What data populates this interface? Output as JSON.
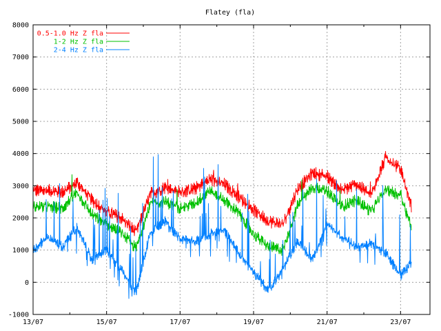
{
  "chart_data": {
    "type": "line",
    "title": "Flatey (fla)",
    "xlabel": "",
    "ylabel": "",
    "x_ticks": [
      "13/07",
      "15/07",
      "17/07",
      "19/07",
      "21/07",
      "23/07"
    ],
    "x_range": [
      0,
      10.8
    ],
    "ylim": [
      -1000,
      8000
    ],
    "y_ticks": [
      -1000,
      0,
      1000,
      2000,
      3000,
      4000,
      5000,
      6000,
      7000,
      8000
    ],
    "grid": true,
    "legend_position": "top-left",
    "colors": {
      "s0": "#ff0000",
      "s1": "#00c000",
      "s2": "#0080ff",
      "frame": "#000000",
      "grid": "#a0a0a0"
    },
    "series": [
      {
        "name": "0.5-1.0 Hz Z fla",
        "color": "#ff0000",
        "x": [
          0,
          0.4,
          0.8,
          1.2,
          1.6,
          2.0,
          2.4,
          2.8,
          3.2,
          3.6,
          4.0,
          4.4,
          4.8,
          5.2,
          5.6,
          6.0,
          6.4,
          6.8,
          7.2,
          7.6,
          8.0,
          8.4,
          8.8,
          9.2,
          9.6,
          10.0,
          10.3
        ],
        "values": [
          2850,
          2850,
          2800,
          3100,
          2550,
          2200,
          2000,
          1550,
          2750,
          2950,
          2800,
          2900,
          3200,
          3050,
          2650,
          2250,
          1900,
          1800,
          2900,
          3400,
          3300,
          2850,
          3050,
          2700,
          3900,
          3500,
          2350
        ]
      },
      {
        "name": "1-2 Hz Z fla",
        "color": "#00c000",
        "x": [
          0,
          0.4,
          0.8,
          1.2,
          1.6,
          2.0,
          2.4,
          2.8,
          3.2,
          3.6,
          4.0,
          4.4,
          4.8,
          5.2,
          5.6,
          6.0,
          6.4,
          6.8,
          7.2,
          7.6,
          8.0,
          8.4,
          8.8,
          9.2,
          9.6,
          10.0,
          10.3
        ],
        "values": [
          2350,
          2350,
          2300,
          2800,
          2100,
          1800,
          1550,
          1050,
          2450,
          2500,
          2300,
          2450,
          2850,
          2550,
          2150,
          1500,
          1100,
          1000,
          2400,
          2950,
          2850,
          2350,
          2550,
          2200,
          2900,
          2700,
          1700
        ]
      },
      {
        "name": "2-4 Hz Z fla",
        "color": "#0080ff",
        "x": [
          0,
          0.4,
          0.8,
          1.2,
          1.6,
          2.0,
          2.4,
          2.8,
          3.2,
          3.6,
          4.0,
          4.4,
          4.8,
          5.2,
          5.6,
          6.0,
          6.4,
          6.8,
          7.2,
          7.6,
          8.0,
          8.4,
          8.8,
          9.2,
          9.6,
          10.0,
          10.3
        ],
        "values": [
          1000,
          1400,
          1100,
          1700,
          700,
          1000,
          400,
          -350,
          1600,
          1900,
          1350,
          1250,
          1500,
          1600,
          900,
          300,
          -250,
          400,
          1300,
          700,
          1800,
          1400,
          1100,
          1200,
          900,
          200,
          600
        ]
      }
    ]
  }
}
